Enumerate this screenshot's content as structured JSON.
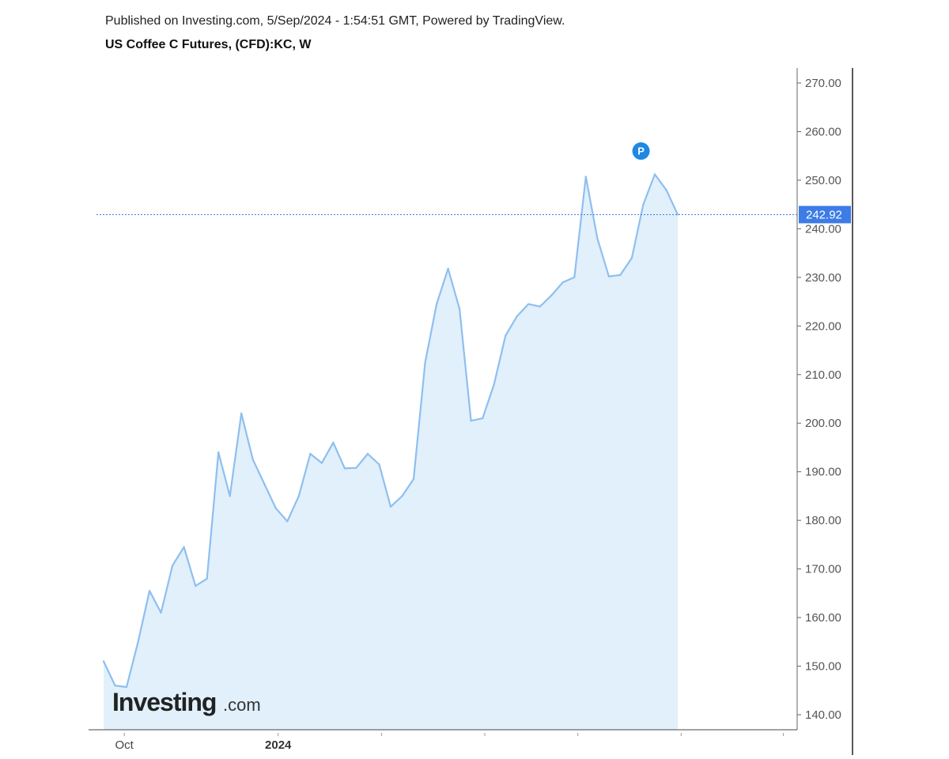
{
  "header": {
    "published": "Published on Investing.com, 5/Sep/2024 - 1:54:51 GMT, Powered by TradingView.",
    "title": "US Coffee C Futures, (CFD):KC, W"
  },
  "logo": {
    "main": "Investing",
    "suffix": ".com"
  },
  "marker": {
    "label": "P",
    "color": "#1e88e5"
  },
  "colors": {
    "line": "#8fbfef",
    "fill": "#e1f0fb",
    "last_price": "#3d7ce6",
    "axis": "#333333"
  },
  "chart_data": {
    "type": "area",
    "title": "US Coffee C Futures, (CFD):KC, W",
    "ylim": [
      135,
      273
    ],
    "y_ticks": [
      {
        "value": 140,
        "label": "140.00"
      },
      {
        "value": 150,
        "label": "150.00"
      },
      {
        "value": 160,
        "label": "160.00"
      },
      {
        "value": 170,
        "label": "170.00"
      },
      {
        "value": 180,
        "label": "180.00"
      },
      {
        "value": 190,
        "label": "190.00"
      },
      {
        "value": 200,
        "label": "200.00"
      },
      {
        "value": 210,
        "label": "210.00"
      },
      {
        "value": 220,
        "label": "220.00"
      },
      {
        "value": 230,
        "label": "230.00"
      },
      {
        "value": 240,
        "label": "240.00"
      },
      {
        "value": 250,
        "label": "250.00"
      },
      {
        "value": 260,
        "label": "260.00"
      },
      {
        "value": 270,
        "label": "270.00"
      }
    ],
    "x_labels": [
      {
        "week": 1.8,
        "label": "Oct",
        "bold": false
      },
      {
        "week": 15.2,
        "label": "2024",
        "bold": true
      }
    ],
    "x_tick_weeks": [
      1.8,
      15.2,
      24.2,
      33.2,
      41.3,
      50.3,
      59.2
    ],
    "last_price": 242.92,
    "last_price_label": "242.92",
    "marker_point": {
      "week": 46.8,
      "value": 256
    },
    "series": [
      {
        "values": [
          151.0,
          146.0,
          145.7,
          155.0,
          165.5,
          161.0,
          170.7,
          174.5,
          166.5,
          168.0,
          194.0,
          185.0,
          202.0,
          192.5,
          187.5,
          182.5,
          179.8,
          185.0,
          193.7,
          191.8,
          196.0,
          190.7,
          190.8,
          193.7,
          191.5,
          182.8,
          185.0,
          188.5,
          212.5,
          224.5,
          231.8,
          223.5,
          200.5,
          201.0,
          208.0,
          218.0,
          222.0,
          224.5,
          224.0,
          226.3,
          229.0,
          230.0,
          250.7,
          238.0,
          230.2,
          230.5,
          234.0,
          245.0,
          251.2,
          248.0,
          242.92
        ]
      }
    ]
  }
}
